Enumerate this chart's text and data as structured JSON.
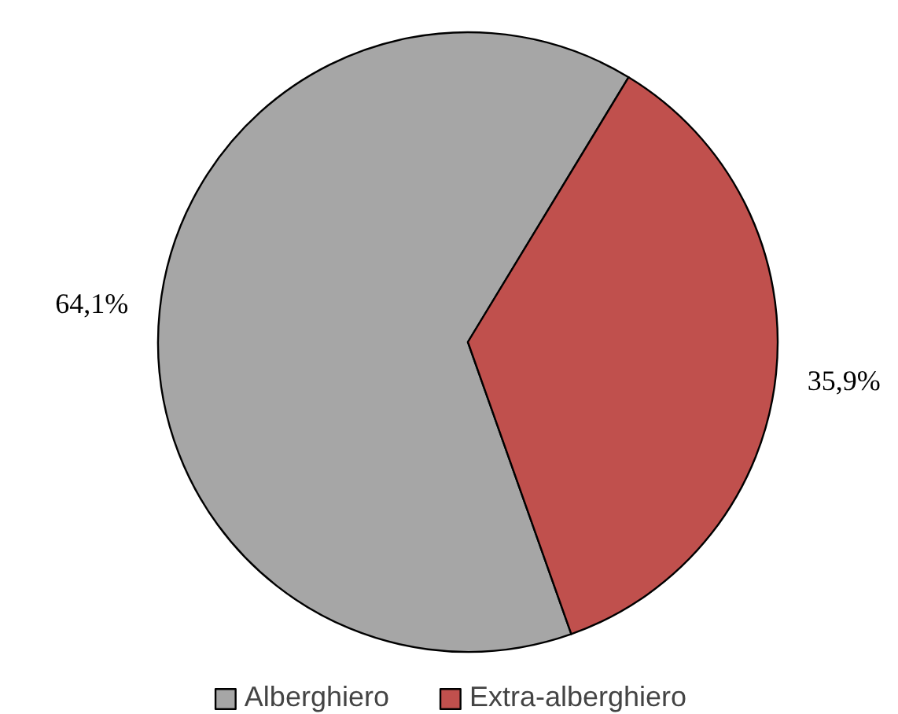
{
  "chart_data": {
    "type": "pie",
    "categories": [
      "Alberghiero",
      "Extra-alberghiero"
    ],
    "values": [
      64.1,
      35.9
    ],
    "colors": [
      "#a6a6a6",
      "#c0504d"
    ],
    "value_labels": [
      "64,1%",
      "35,9%"
    ],
    "legend": "bottom"
  }
}
